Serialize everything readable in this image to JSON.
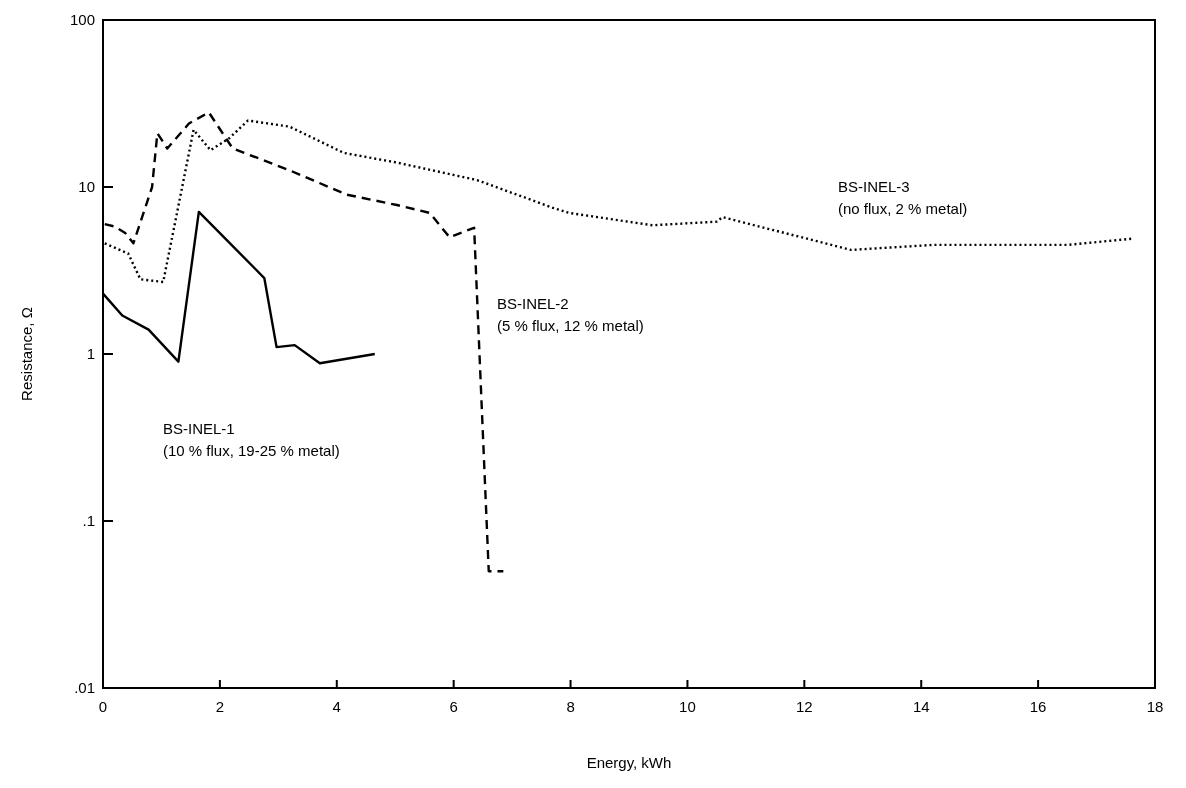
{
  "chart_data": {
    "type": "line",
    "xlabel": "Energy, kWh",
    "ylabel": "Resistance, Ω",
    "log": "y",
    "xlim": [
      0,
      18
    ],
    "xticks": [
      0,
      2,
      4,
      6,
      8,
      10,
      12,
      14,
      16,
      18
    ],
    "ylim": [
      0.01,
      100
    ],
    "yticks": [
      {
        "value": 0.01,
        "label": ".01"
      },
      {
        "value": 0.1,
        "label": ".1"
      },
      1,
      10,
      100
    ],
    "grid": false,
    "series": [
      {
        "color": "#000000",
        "line_style": "solid",
        "x": [
          0,
          0.33,
          0.78,
          1.29,
          1.64,
          2.76,
          2.97,
          3.28,
          3.71,
          4.65
        ],
        "values": [
          2.3,
          1.7,
          1.4,
          0.9,
          7.1,
          2.85,
          1.1,
          1.13,
          0.88,
          1.0
        ]
      },
      {
        "color": "#000000",
        "line_style": "dashed",
        "x": [
          0.03,
          0.2,
          0.38,
          0.52,
          0.84,
          0.93,
          1.1,
          1.47,
          1.81,
          2.22,
          2.74,
          3.19,
          4.17,
          5.03,
          5.59,
          5.93,
          6.35,
          6.6,
          6.85
        ],
        "values": [
          6.0,
          5.8,
          5.3,
          4.6,
          10,
          21,
          17,
          24,
          28,
          17,
          14.5,
          12.6,
          9,
          7.8,
          7,
          5,
          5.7,
          0.05,
          0.05
        ]
      },
      {
        "color": "#000000",
        "line_style": "dotted",
        "x": [
          0.03,
          0.43,
          0.64,
          1.03,
          1.55,
          1.84,
          2.16,
          2.48,
          3.19,
          4.12,
          5.03,
          6.4,
          7.7,
          7.97,
          9.4,
          10.5,
          10.6,
          12.8,
          14.2,
          16.5,
          17.6
        ],
        "values": [
          4.6,
          4.0,
          2.8,
          2.7,
          22,
          16.6,
          19.6,
          25,
          23,
          16,
          14,
          11,
          7.5,
          7,
          5.9,
          6.2,
          6.6,
          4.2,
          4.5,
          4.5,
          4.9
        ]
      }
    ],
    "annotations": [
      "BS-INEL-1\n(10 % flux, 19-25 % metal)",
      "BS-INEL-2\n(5 % flux, 12 % metal)",
      "BS-INEL-3\n(no flux, 2 % metal)"
    ]
  }
}
